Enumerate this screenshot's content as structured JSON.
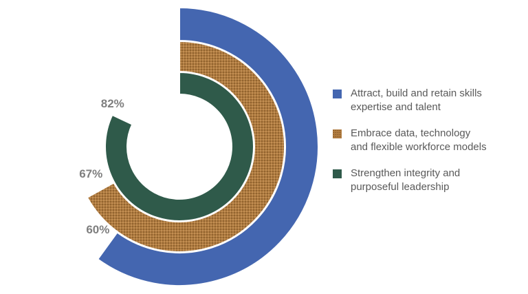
{
  "chart_data": {
    "type": "radial-bar",
    "series": [
      {
        "name": "Attract, build and retain skills\nexpertise and talent",
        "value": 60,
        "label": "60%",
        "color": "#4466b0",
        "pattern": "solid"
      },
      {
        "name": "Embrace data, technology\nand flexible workforce models",
        "value": 67,
        "label": "67%",
        "color": "#a9743a",
        "pattern": "dotted"
      },
      {
        "name": "Strengthen integrity and\npurposeful leadership",
        "value": 82,
        "label": "82%",
        "color": "#2f5a4a",
        "pattern": "solid"
      }
    ],
    "scale_max": 100,
    "legend_position": "right"
  }
}
